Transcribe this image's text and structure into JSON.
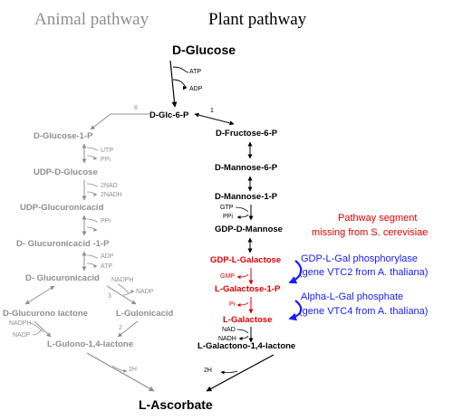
{
  "headings": {
    "animal": "Animal pathway",
    "plant": "Plant pathway"
  },
  "shared": {
    "start": "D-Glucose",
    "glc6p": "D-Glc-6-P",
    "end": "L-Ascorbate",
    "cofactor_atp": "ATP",
    "cofactor_adp": "ADP"
  },
  "animal": {
    "step_number": "8",
    "nodes": {
      "glucose_1p": "D-Glucose-1-P",
      "udp_glucose": "UDP-D-Glucose",
      "udp_glucuronic": "UDP-Glucuronicacid",
      "glucuronic_1p": "D- Glucuronicacid -1-P",
      "glucuronic": "D- Glucuronicacid",
      "glucurono_lactone": "D-Glucurono lactone",
      "gulonic": "L-Gulonicacid",
      "gulono_lactone": "L-Gulono-1,4-lactone"
    },
    "cofactors": {
      "utp": "UTP",
      "ppi_1": "PPi",
      "nad2": "2NAD",
      "nadh2": "2NADH",
      "ppi_2": "PPi",
      "adp": "ADP",
      "atp": "ATP",
      "nadph_right": "NADPH",
      "nadp_right": "NADP",
      "nadph_left": "NADPH",
      "nadp_left": "NADP",
      "h2": "2H",
      "step_3": "3",
      "step_2": "2"
    }
  },
  "plant": {
    "step_number": "1",
    "nodes": {
      "fructose_6p": "D-Fructose-6-P",
      "mannose_6p": "D-Mannose-6-P",
      "mannose_1p": "D-Mannose-1-P",
      "gdp_mannose": "GDP-D-Mannose",
      "gdp_galactose": "GDP-L-Galactose",
      "galactose_1p": "L-Galactose-1-P",
      "galactose": "L-Galactose",
      "galactono_lactone": "L-Galactono-1,4-lactone"
    },
    "cofactors": {
      "gtp": "GTP",
      "ppi": "PPi",
      "gmp": "GMP",
      "pi": "Pi",
      "nad": "NAD",
      "nadh": "NADH",
      "h2": "2H"
    }
  },
  "annotations": {
    "missing_line1": "Pathway segment",
    "missing_line2": "missing from S. cerevisiae",
    "vtc2_line1": "GDP-L-Gal phosphorylase",
    "vtc2_line2": "(gene VTC2 from A. thaliana)",
    "vtc4_line1": "Alpha-L-Gal phosphate",
    "vtc4_line2": "(gene VTC4 from A. thaliana)"
  },
  "colors": {
    "animal": "#8f8f8f",
    "plant": "#000000",
    "missing": "#e00000",
    "enzyme": "#1a1aff"
  }
}
